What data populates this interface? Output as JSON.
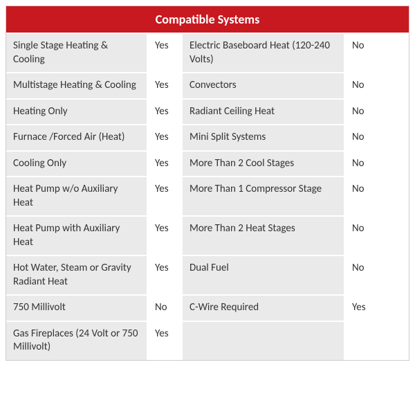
{
  "title": "Compatible Systems",
  "rows": [
    {
      "l1": "Single Stage Heating & Cooling",
      "v1": "Yes",
      "l2": "Electric Baseboard Heat (120-240 Volts)",
      "v2": "No"
    },
    {
      "l1": "Multistage Heating & Cooling",
      "v1": "Yes",
      "l2": "Convectors",
      "v2": "No"
    },
    {
      "l1": "Heating Only",
      "v1": "Yes",
      "l2": "Radiant Ceiling Heat",
      "v2": "No"
    },
    {
      "l1": "Furnace /Forced Air (Heat)",
      "v1": "Yes",
      "l2": "Mini Split Systems",
      "v2": "No"
    },
    {
      "l1": "Cooling Only",
      "v1": "Yes",
      "l2": "More Than 2 Cool Stages",
      "v2": "No"
    },
    {
      "l1": "Heat Pump w/o Auxiliary Heat",
      "v1": "Yes",
      "l2": "More Than 1 Compressor Stage",
      "v2": "No"
    },
    {
      "l1": "Heat Pump with Auxiliary Heat",
      "v1": "Yes",
      "l2": "More Than 2 Heat Stages",
      "v2": "No"
    },
    {
      "l1": "Hot Water, Steam or Gravity Radiant Heat",
      "v1": "Yes",
      "l2": "Dual Fuel",
      "v2": "No"
    },
    {
      "l1": "750 Millivolt",
      "v1": "No",
      "l2": "C-Wire Required",
      "v2": "Yes"
    },
    {
      "l1": "Gas Fireplaces (24 Volt or 750 Millivolt)",
      "v1": "Yes",
      "l2": "",
      "v2": ""
    }
  ],
  "colors": {
    "header_bg": "#c81921",
    "header_text": "#ffffff",
    "grey": "#eaeaea",
    "white": "#ffffff",
    "text": "#333333"
  }
}
